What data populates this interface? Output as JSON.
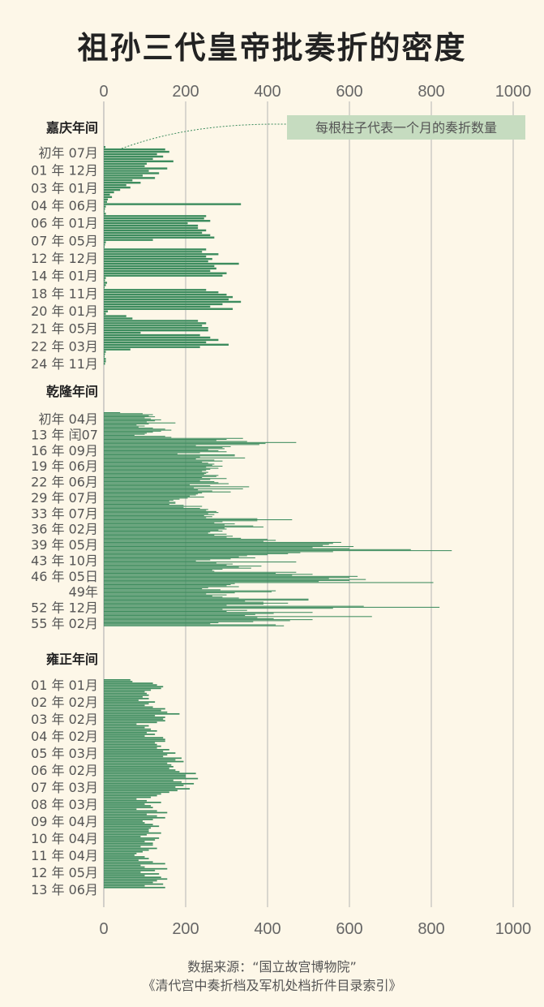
{
  "title": "祖孙三代皇帝批奏折的密度",
  "source_lines": [
    "数据来源：“国立故宫博物院”",
    "《清代宫中奏折档及军机处档折件目录索引》"
  ],
  "colors": {
    "bar": "#3d8c5e",
    "background": "#fdf7e8",
    "grid": "#b5b5b5",
    "annotation_bg": "#c6dcc0"
  },
  "chart_data": {
    "type": "bar",
    "orientation": "horizontal",
    "xlim": [
      0,
      1000
    ],
    "xticks": [
      "0",
      "200",
      "400",
      "600",
      "800",
      "1000"
    ],
    "grid": true,
    "annotation": "每根柱子代表一个月的奏折数量",
    "sections": [
      {
        "name": "嘉庆年间",
        "ylabels": [
          "初年 07月",
          "01 年 12月",
          "03 年 01月",
          "04 年 06月",
          "06 年 01月",
          "07 年 05月",
          "12 年 12月",
          "14 年 01月",
          "18 年 11月",
          "20 年 01月",
          "21 年 05月",
          "22 年 03月",
          "24 年 11月"
        ],
        "values": [
          4,
          150,
          160,
          130,
          145,
          120,
          170,
          105,
          100,
          155,
          110,
          135,
          95,
          125,
          70,
          90,
          55,
          65,
          40,
          25,
          15,
          20,
          10,
          8,
          335,
          5,
          3,
          2,
          5,
          250,
          245,
          260,
          205,
          230,
          230,
          250,
          240,
          260,
          270,
          120,
          5,
          3,
          2,
          250,
          240,
          280,
          250,
          265,
          255,
          330,
          270,
          275,
          260,
          300,
          290,
          5,
          3,
          8,
          5,
          2,
          250,
          280,
          300,
          315,
          305,
          335,
          290,
          260,
          315,
          10,
          5,
          55,
          70,
          230,
          250,
          240,
          255,
          255,
          90,
          235,
          260,
          280,
          250,
          305,
          235,
          65,
          5,
          3,
          2,
          5,
          5,
          3
        ]
      },
      {
        "name": "乾隆年间",
        "ylabels": [
          "初年 04月",
          "13 年 闰07",
          "16 年 09月",
          "19 年 06月",
          "22 年 06月",
          "29 年 07月",
          "33 年 07月",
          "36 年 02月",
          "39 年 05月",
          "43 年 10月",
          "46 年 05日",
          "49年",
          "52 年 12月",
          "55 年 02月"
        ],
        "values": [
          40,
          95,
          120,
          110,
          125,
          100,
          115,
          140,
          125,
          105,
          175,
          110,
          80,
          100,
          85,
          120,
          150,
          165,
          140,
          120,
          105,
          100,
          75,
          150,
          165,
          340,
          300,
          275,
          350,
          470,
          395,
          380,
          225,
          310,
          290,
          295,
          255,
          280,
          300,
          235,
          180,
          320,
          320,
          235,
          345,
          225,
          270,
          290,
          240,
          255,
          270,
          265,
          290,
          250,
          280,
          260,
          250,
          240,
          255,
          250,
          245,
          280,
          275,
          240,
          300,
          260,
          235,
          270,
          280,
          305,
          210,
          260,
          355,
          220,
          340,
          230,
          265,
          310,
          240,
          230,
          225,
          210,
          245,
          205,
          185,
          170,
          160,
          175,
          175,
          160,
          195,
          240,
          195,
          235,
          255,
          250,
          275,
          280,
          255,
          270,
          245,
          265,
          250,
          375,
          460,
          375,
          290,
          270,
          320,
          295,
          365,
          390,
          295,
          300,
          280,
          290,
          260,
          255,
          300,
          270,
          315,
          300,
          335,
          400,
          420,
          390,
          580,
          560,
          550,
          535,
          610,
          510,
          600,
          750,
          850,
          560,
          480,
          450,
          400,
          350,
          330,
          370,
          310,
          260,
          225,
          470,
          275,
          315,
          300,
          385,
          330,
          360,
          290,
          265,
          270,
          470,
          420,
          510,
          460,
          620,
          600,
          550,
          640,
          600,
          525,
          805,
          320,
          310,
          300,
          330,
          255,
          240,
          285,
          420,
          410,
          320,
          250,
          300,
          265,
          290,
          330,
          500,
          500,
          345,
          390,
          450,
          390,
          300,
          635,
          820,
          560,
          290,
          350,
          300,
          510,
          415,
          370,
          345,
          655,
          375,
          415,
          510,
          455,
          365,
          280,
          260,
          420,
          440
        ]
      },
      {
        "name": "雍正年间",
        "ylabels": [
          "01 年 01月",
          "02 年 02月",
          "03 年 02月",
          "04 年 02月",
          "05 年 03月",
          "06 年 02月",
          "07 年 03月",
          "08 年 03月",
          "09 年 04月",
          "10 年 04月",
          "11 年 04月",
          "12 年 05月",
          "13 年 06月"
        ],
        "values": [
          65,
          70,
          120,
          130,
          145,
          140,
          115,
          100,
          105,
          110,
          95,
          110,
          85,
          125,
          110,
          100,
          120,
          150,
          140,
          155,
          185,
          125,
          150,
          145,
          150,
          130,
          80,
          110,
          100,
          115,
          130,
          105,
          125,
          100,
          145,
          150,
          150,
          125,
          130,
          140,
          130,
          160,
          145,
          175,
          155,
          145,
          190,
          175,
          195,
          155,
          165,
          170,
          160,
          175,
          185,
          225,
          200,
          200,
          230,
          170,
          190,
          220,
          195,
          175,
          210,
          180,
          160,
          140,
          130,
          115,
          80,
          105,
          140,
          100,
          115,
          120,
          80,
          130,
          155,
          105,
          130,
          150,
          120,
          95,
          100,
          120,
          135,
          115,
          110,
          110,
          140,
          105,
          90,
          135,
          125,
          100,
          120,
          120,
          90,
          130,
          110,
          95,
          80,
          75,
          100,
          110,
          85,
          120,
          150,
          90,
          100,
          155,
          125,
          90,
          135,
          100,
          140,
          155,
          130,
          120,
          145,
          100,
          150
        ]
      }
    ]
  }
}
